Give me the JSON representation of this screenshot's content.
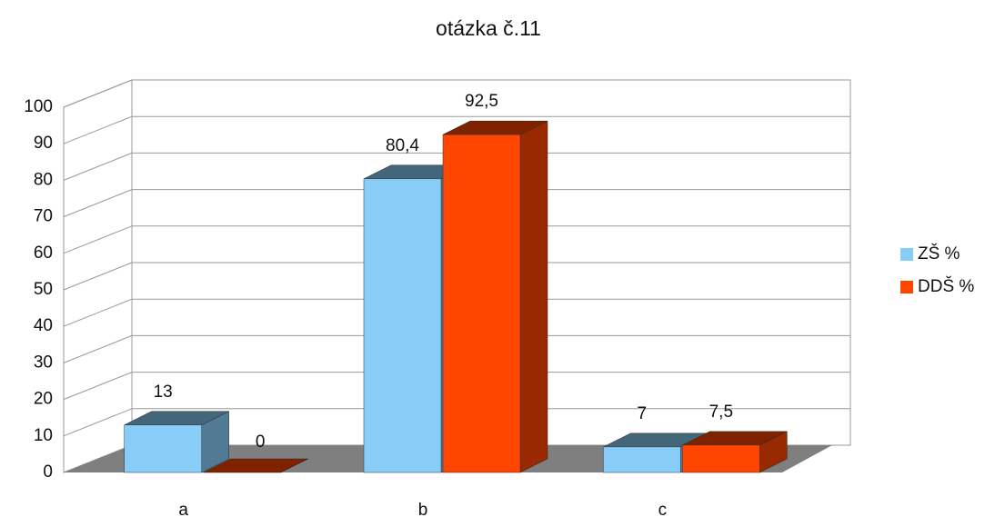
{
  "chart_data": {
    "type": "bar",
    "title": "otázka č.11",
    "categories": [
      "a",
      "b",
      "c"
    ],
    "series": [
      {
        "name": "ZŠ %",
        "color": "#87cdf7",
        "values": [
          13,
          80.4,
          7
        ],
        "value_labels": [
          "13",
          "80,4",
          "7"
        ]
      },
      {
        "name": "DDŠ %",
        "color": "#ff4500",
        "values": [
          0,
          92.5,
          7.5
        ],
        "value_labels": [
          "0",
          "92,5",
          "7,5"
        ]
      }
    ],
    "ylim": [
      0,
      100
    ],
    "yticks": [
      0,
      10,
      20,
      30,
      40,
      50,
      60,
      70,
      80,
      90,
      100
    ],
    "grid": true,
    "legend": "right"
  }
}
